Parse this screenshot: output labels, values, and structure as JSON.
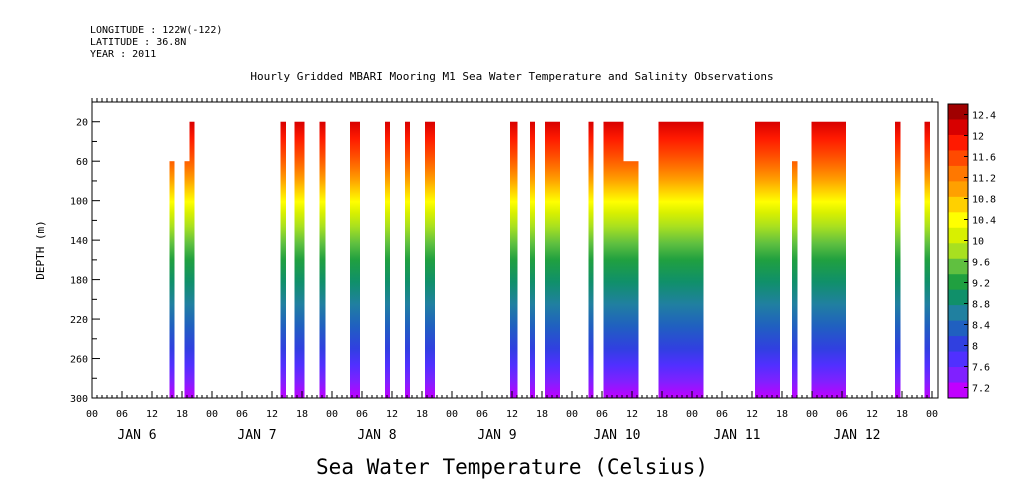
{
  "header": {
    "longitude": "LONGITUDE : 122W(-122)",
    "latitude": "LATITUDE : 36.8N",
    "year": "YEAR : 2011"
  },
  "chart_data": {
    "type": "heatmap",
    "title": "Hourly Gridded MBARI Mooring M1 Sea Water Temperature and Salinity Observations",
    "xlabel_bottom": "Sea Water Temperature (Celsius)",
    "ylabel": "DEPTH (m)",
    "y_axis": {
      "min": 0,
      "max": 300,
      "inverted": true,
      "tick_labels": [
        "20",
        "60",
        "100",
        "140",
        "180",
        "220",
        "260",
        "300"
      ],
      "ticks": [
        20,
        60,
        100,
        140,
        180,
        220,
        260,
        300
      ]
    },
    "x_axis": {
      "hour_labels": [
        "00",
        "06",
        "12",
        "18",
        "00",
        "06",
        "12",
        "18",
        "00",
        "06",
        "12",
        "18",
        "00",
        "06",
        "12",
        "18",
        "00",
        "06",
        "12",
        "18",
        "00",
        "06",
        "12",
        "18",
        "00",
        "06",
        "12",
        "18",
        "00"
      ],
      "day_labels": [
        "JAN 6",
        "JAN 7",
        "JAN 8",
        "JAN 9",
        "JAN 10",
        "JAN 11",
        "JAN 12"
      ],
      "range_hours": [
        0,
        168
      ]
    },
    "colorbar": {
      "labels": [
        "12.4",
        "12",
        "11.6",
        "11.2",
        "10.8",
        "10.4",
        "10",
        "9.6",
        "9.2",
        "8.8",
        "8.4",
        "8",
        "7.6",
        "7.2"
      ],
      "colors": [
        "#a00000",
        "#d80000",
        "#ff1a00",
        "#ff4a00",
        "#ff7800",
        "#ffa000",
        "#ffd000",
        "#ffff00",
        "#d8f000",
        "#a8e020",
        "#60c040",
        "#20a040",
        "#10906a",
        "#2080a0",
        "#2060c0",
        "#3040e0",
        "#5030ff",
        "#8020ff",
        "#c000ff"
      ]
    },
    "profiles": [
      {
        "start": 15.5,
        "end": 16.5,
        "top": 60
      },
      {
        "start": 18.5,
        "end": 19.5,
        "top": 60
      },
      {
        "start": 19.5,
        "end": 20.5,
        "top": 20
      },
      {
        "start": 37.7,
        "end": 38.8,
        "top": 20
      },
      {
        "start": 40.5,
        "end": 42.5,
        "top": 20
      },
      {
        "start": 45.5,
        "end": 46.7,
        "top": 20
      },
      {
        "start": 51.6,
        "end": 53.6,
        "top": 20
      },
      {
        "start": 58.6,
        "end": 59.6,
        "top": 20
      },
      {
        "start": 62.6,
        "end": 63.6,
        "top": 20
      },
      {
        "start": 66.6,
        "end": 68.6,
        "top": 20
      },
      {
        "start": 83.6,
        "end": 85.1,
        "top": 20
      },
      {
        "start": 87.6,
        "end": 88.6,
        "top": 20
      },
      {
        "start": 90.6,
        "end": 93.6,
        "top": 20
      },
      {
        "start": 99.3,
        "end": 100.3,
        "top": 20
      },
      {
        "start": 102.3,
        "end": 106.3,
        "top": 20
      },
      {
        "start": 106.3,
        "end": 109.3,
        "top": 60
      },
      {
        "start": 113.3,
        "end": 122.3,
        "top": 20
      },
      {
        "start": 132.6,
        "end": 137.6,
        "top": 20
      },
      {
        "start": 140.0,
        "end": 141.1,
        "top": 60
      },
      {
        "start": 143.9,
        "end": 150.8,
        "top": 20
      },
      {
        "start": 160.6,
        "end": 161.7,
        "top": 20
      },
      {
        "start": 166.5,
        "end": 167.6,
        "top": 20
      }
    ]
  }
}
